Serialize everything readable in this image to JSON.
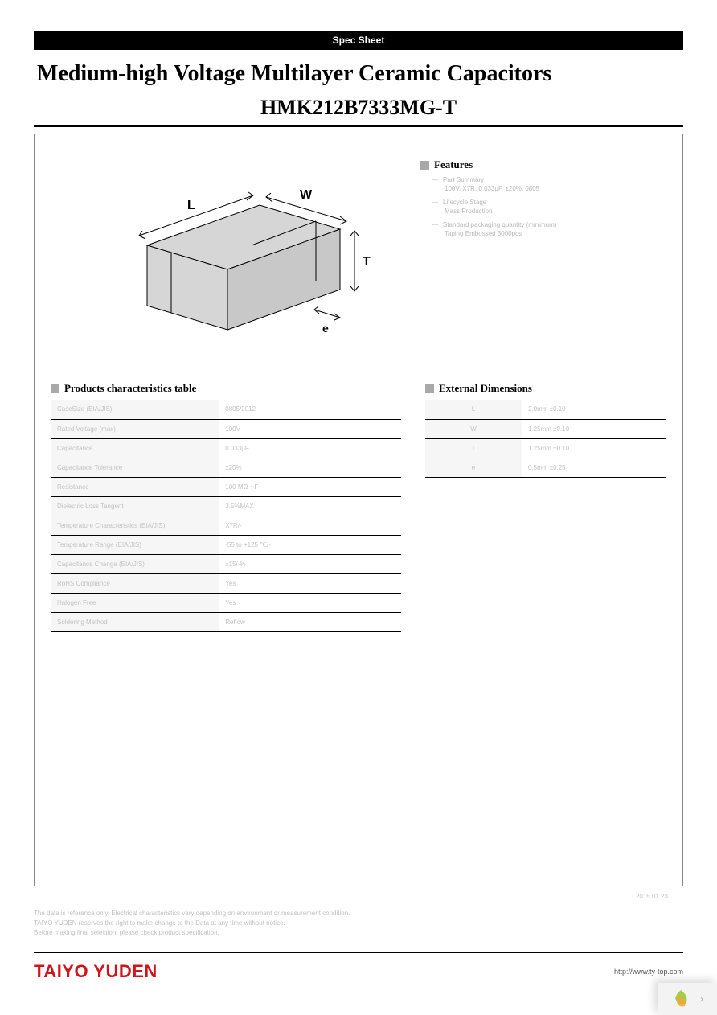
{
  "header": {
    "banner": "Spec Sheet",
    "title_line1": "Medium-high Voltage Multilayer Ceramic Capacitors",
    "title_line2": "HMK212B7333MG-T"
  },
  "diagram": {
    "labels": {
      "L": "L",
      "W": "W",
      "T": "T",
      "e": "e"
    },
    "fill_color": "#d6d6d6",
    "stroke_color": "#000000"
  },
  "features": {
    "heading": "Features",
    "items": [
      {
        "title": "Part Summary",
        "sub": "100V, X7R, 0.033μF, ±20%, 0805"
      },
      {
        "title": "Lifecycle Stage",
        "sub": "Mass Production"
      },
      {
        "title": "Standard packaging quantity (minimum)",
        "sub": "Taping Embossed 3000pcs"
      }
    ]
  },
  "characteristics": {
    "heading": "Products characteristics table",
    "rows": [
      [
        "CaseSize (EIA/JIS)",
        "0805/2012"
      ],
      [
        "Rated Voltage (max)",
        "100V"
      ],
      [
        "Capacitance",
        "0.033μF"
      ],
      [
        "Capacitance Tolerance",
        "±20%"
      ],
      [
        "Resistance",
        "100 MΩ・F"
      ],
      [
        "Dielectric Loss Tangent",
        "3.5%MAX"
      ],
      [
        "Temperature Characteristics (EIA/JIS)",
        "X7R/-"
      ],
      [
        "Temperature Range (EIA/JIS)",
        "-55 to +125 ℃/-"
      ],
      [
        "Capacitance Change (EIA/JIS)",
        "±15/-%"
      ],
      [
        "RoHS Compliance",
        "Yes"
      ],
      [
        "Halogen Free",
        "Yes"
      ],
      [
        "Soldering Method",
        "Reflow"
      ]
    ]
  },
  "dimensions": {
    "heading": "External Dimensions",
    "rows": [
      [
        "L",
        "2.0mm ±0.10"
      ],
      [
        "W",
        "1.25mm ±0.10"
      ],
      [
        "T",
        "1.25mm ±0.10"
      ],
      [
        "e",
        "0.5mm ±0.25"
      ]
    ]
  },
  "date": "2015.01.23",
  "disclaimer": {
    "line1": "The data is reference only. Electrical characteristics vary depending on environment or measurement condition.",
    "line2": "TAIYO YUDEN reserves the right to make change to the Data at any time without notice.",
    "line3": "Before making final selection, please check product specification."
  },
  "footer": {
    "brand": "TAIYO YUDEN",
    "url": "http://www.ty-top.com"
  }
}
